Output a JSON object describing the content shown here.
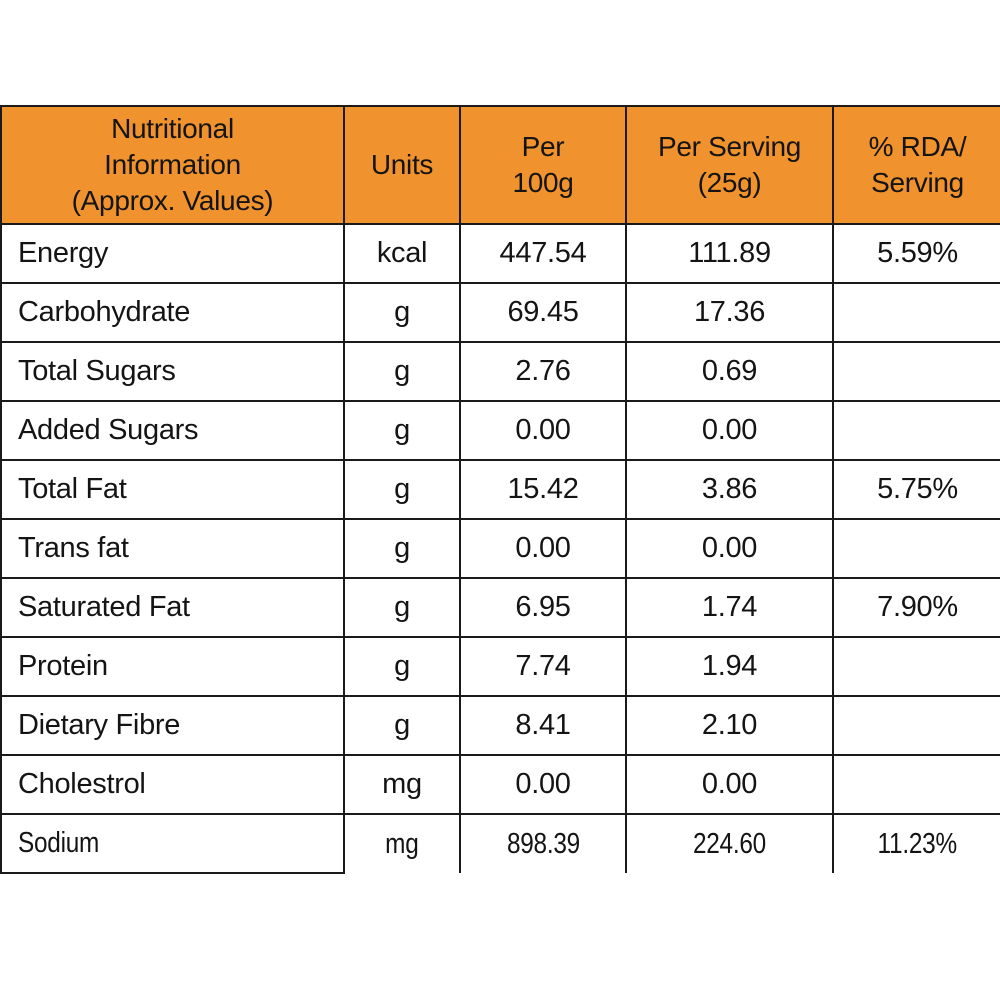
{
  "colors": {
    "header_bg": "#F0922D",
    "grid_line": "#1a1a1a",
    "text": "#141414",
    "background": "#FFFFFF"
  },
  "table": {
    "headers": [
      "Nutritional\nInformation\n(Approx. Values)",
      "Units",
      "Per\n100g",
      "Per Serving\n(25g)",
      "% RDA/\nServing"
    ],
    "rows": [
      {
        "label": "Energy",
        "unit": "kcal",
        "per_100g": "447.54",
        "per_serving": "111.89",
        "rda_per_serving": "5.59%"
      },
      {
        "label": "Carbohydrate",
        "unit": "g",
        "per_100g": "69.45",
        "per_serving": "17.36",
        "rda_per_serving": ""
      },
      {
        "label": "Total Sugars",
        "unit": "g",
        "per_100g": "2.76",
        "per_serving": "0.69",
        "rda_per_serving": ""
      },
      {
        "label": "Added Sugars",
        "unit": "g",
        "per_100g": "0.00",
        "per_serving": "0.00",
        "rda_per_serving": ""
      },
      {
        "label": "Total Fat",
        "unit": "g",
        "per_100g": "15.42",
        "per_serving": "3.86",
        "rda_per_serving": "5.75%"
      },
      {
        "label": "Trans fat",
        "unit": "g",
        "per_100g": "0.00",
        "per_serving": "0.00",
        "rda_per_serving": ""
      },
      {
        "label": "Saturated Fat",
        "unit": "g",
        "per_100g": "6.95",
        "per_serving": "1.74",
        "rda_per_serving": "7.90%"
      },
      {
        "label": "Protein",
        "unit": "g",
        "per_100g": "7.74",
        "per_serving": "1.94",
        "rda_per_serving": ""
      },
      {
        "label": "Dietary Fibre",
        "unit": "g",
        "per_100g": "8.41",
        "per_serving": "2.10",
        "rda_per_serving": ""
      },
      {
        "label": "Cholestrol",
        "unit": "mg",
        "per_100g": "0.00",
        "per_serving": "0.00",
        "rda_per_serving": ""
      },
      {
        "label": "Sodium",
        "unit": "mg",
        "per_100g": "898.39",
        "per_serving": "224.60",
        "rda_per_serving": "11.23%"
      }
    ]
  }
}
